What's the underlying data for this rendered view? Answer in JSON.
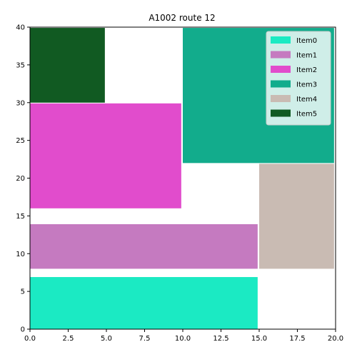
{
  "chart_data": {
    "type": "bar",
    "title": "A1002 route 12",
    "xlabel": "",
    "ylabel": "",
    "xlim": [
      0,
      20
    ],
    "ylim": [
      0,
      40
    ],
    "x_ticks": [
      "0.0",
      "2.5",
      "5.0",
      "7.5",
      "10.0",
      "12.5",
      "15.0",
      "17.5",
      "20.0"
    ],
    "y_ticks": [
      "0",
      "5",
      "10",
      "15",
      "20",
      "25",
      "30",
      "35",
      "40"
    ],
    "grid": false,
    "legend_position": "top-right",
    "series": [
      {
        "name": "Item0",
        "color": "#1beac3",
        "rect": {
          "x0": 0,
          "x1": 14.9,
          "y0": 0,
          "y1": 6.9
        }
      },
      {
        "name": "Item1",
        "color": "#c57ac0",
        "rect": {
          "x0": 0,
          "x1": 14.9,
          "y0": 8,
          "y1": 13.9
        }
      },
      {
        "name": "Item2",
        "color": "#e14ccc",
        "rect": {
          "x0": 0,
          "x1": 9.9,
          "y0": 16,
          "y1": 29.9
        }
      },
      {
        "name": "Item3",
        "color": "#12ac8c",
        "rect": {
          "x0": 10,
          "x1": 19.9,
          "y0": 22,
          "y1": 39.9
        }
      },
      {
        "name": "Item4",
        "color": "#c9bbb3",
        "rect": {
          "x0": 15,
          "x1": 19.9,
          "y0": 8,
          "y1": 21.9
        }
      },
      {
        "name": "Item5",
        "color": "#115a22",
        "rect": {
          "x0": 0,
          "x1": 4.9,
          "y0": 30,
          "y1": 39.9
        }
      }
    ]
  }
}
